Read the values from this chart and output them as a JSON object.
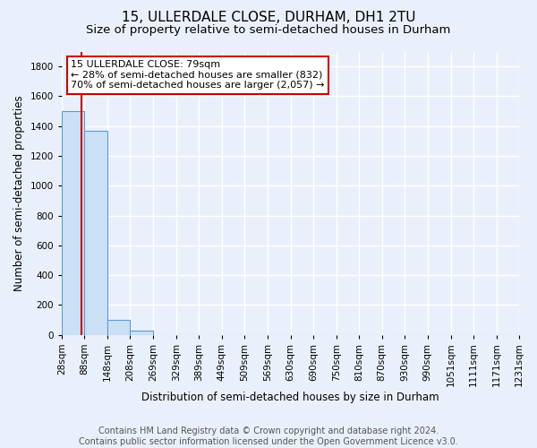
{
  "title": "15, ULLERDALE CLOSE, DURHAM, DH1 2TU",
  "subtitle": "Size of property relative to semi-detached houses in Durham",
  "xlabel": "Distribution of semi-detached houses by size in Durham",
  "ylabel": "Number of semi-detached properties",
  "footer_line1": "Contains HM Land Registry data © Crown copyright and database right 2024.",
  "footer_line2": "Contains public sector information licensed under the Open Government Licence v3.0.",
  "bin_edges": [
    28,
    88,
    148,
    208,
    269,
    329,
    389,
    449,
    509,
    569,
    630,
    690,
    750,
    810,
    870,
    930,
    990,
    1051,
    1111,
    1171,
    1231
  ],
  "bar_heights": [
    1500,
    1370,
    100,
    30,
    0,
    0,
    0,
    0,
    0,
    0,
    0,
    0,
    0,
    0,
    0,
    0,
    0,
    0,
    0,
    0
  ],
  "bar_color": "#cce0f5",
  "bar_edge_color": "#5b9bd5",
  "property_size": 79,
  "property_line_color": "#cc0000",
  "annotation_text_line1": "15 ULLERDALE CLOSE: 79sqm",
  "annotation_text_line2": "← 28% of semi-detached houses are smaller (832)",
  "annotation_text_line3": "70% of semi-detached houses are larger (2,057) →",
  "annotation_box_color": "#ffffff",
  "annotation_box_edge_color": "#cc0000",
  "ylim": [
    0,
    1900
  ],
  "background_color": "#eaf0fb",
  "grid_color": "#ffffff",
  "title_fontsize": 11,
  "subtitle_fontsize": 9.5,
  "axis_label_fontsize": 8.5,
  "tick_fontsize": 7.5,
  "annotation_fontsize": 8,
  "footer_fontsize": 7
}
